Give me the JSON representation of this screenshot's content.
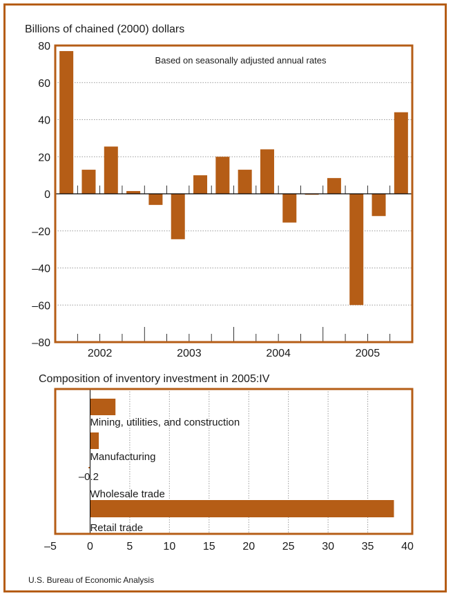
{
  "footer": {
    "source": "U.S. Bureau of Economic Analysis"
  },
  "colors": {
    "bar": "#b55d16",
    "frame": "#b55d16",
    "grid": "#999999",
    "axis": "#000000"
  },
  "chart_data": [
    {
      "type": "bar",
      "title": "Billions of chained (2000) dollars",
      "annotation": "Based on seasonally adjusted annual rates",
      "ylim": [
        -80,
        80
      ],
      "yticks": [
        -80,
        -60,
        -40,
        -20,
        0,
        20,
        40,
        60,
        80
      ],
      "ytick_labels": [
        "–80",
        "–60",
        "–40",
        "–20",
        "0",
        "20",
        "40",
        "60",
        "80"
      ],
      "year_labels": [
        "2002",
        "2003",
        "2004",
        "2005"
      ],
      "categories": [
        "2002:I",
        "2002:II",
        "2002:III",
        "2002:IV",
        "2003:I",
        "2003:II",
        "2003:III",
        "2003:IV",
        "2004:I",
        "2004:II",
        "2004:III",
        "2004:IV",
        "2005:I",
        "2005:II",
        "2005:III",
        "2005:IV"
      ],
      "values": [
        77,
        13,
        25.5,
        1.5,
        -6,
        -24.5,
        10,
        20,
        13,
        24,
        -15.5,
        -0.5,
        8.5,
        -60,
        -12,
        44
      ],
      "grid": true
    },
    {
      "type": "bar",
      "orientation": "horizontal",
      "title": "Composition of inventory investment in 2005:IV",
      "categories": [
        "Mining, utilities, and construction",
        "Manufacturing",
        "Wholesale trade",
        "Retail trade"
      ],
      "values": [
        3.2,
        1.1,
        -0.2,
        38.3
      ],
      "data_labels": [
        "",
        "",
        "–0.2",
        ""
      ],
      "xlim": [
        -5,
        40
      ],
      "xticks": [
        -5,
        0,
        5,
        10,
        15,
        20,
        25,
        30,
        35,
        40
      ],
      "xtick_labels": [
        "–5",
        "0",
        "5",
        "10",
        "15",
        "20",
        "25",
        "30",
        "35",
        "40"
      ],
      "grid": true
    }
  ]
}
